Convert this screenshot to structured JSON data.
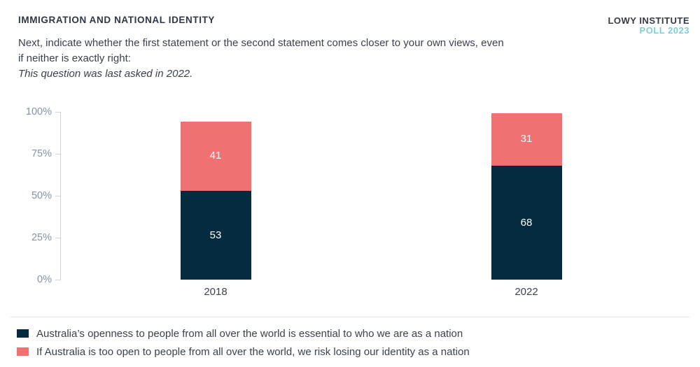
{
  "header": {
    "title": "IMMIGRATION AND NATIONAL IDENTITY",
    "description": "Next, indicate whether the first statement or the second statement comes closer to your own views, even if neither is exactly right:",
    "note": "This question was last asked in 2022.",
    "logo_line1": "LOWY INSTITUTE",
    "logo_line2": "POLL 2023"
  },
  "colors": {
    "navy": "#052b3f",
    "salmon": "#ef7172",
    "logo_teal": "#7fccd9",
    "axis": "#cdd6e0",
    "axis_text": "#8492a4"
  },
  "chart_data": {
    "type": "bar",
    "stacked": true,
    "title": "IMMIGRATION AND NATIONAL IDENTITY",
    "xlabel": "",
    "ylabel": "",
    "categories": [
      "2018",
      "2022"
    ],
    "series": [
      {
        "name": "Australia’s openness to people from all over the world is essential to who we are as a nation",
        "color": "#052b3f",
        "values": [
          53,
          68
        ]
      },
      {
        "name": "If Australia is too open to people from all over the world, we risk losing our identity as a nation",
        "color": "#ef7172",
        "values": [
          41,
          31
        ]
      }
    ],
    "ylim": [
      0,
      100
    ],
    "y_ticks": [
      0,
      25,
      50,
      75,
      100
    ],
    "y_tick_suffix": "%",
    "grid": false,
    "legend_position": "bottom",
    "bar_value_labels_shown": true
  }
}
